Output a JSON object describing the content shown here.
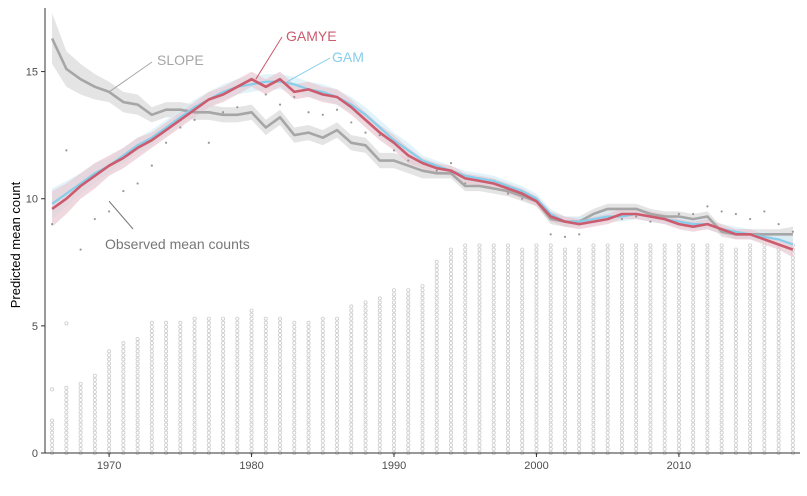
{
  "chart_data": {
    "type": "line",
    "title": "",
    "xlabel": "",
    "ylabel": "Predicted mean count",
    "xlim": [
      1965.5,
      2018.5
    ],
    "ylim": [
      0,
      17.5
    ],
    "x_ticks": [
      1970,
      1980,
      1990,
      2000,
      2010
    ],
    "y_ticks": [
      0,
      5,
      10,
      15
    ],
    "x_tick_labels": [
      "1970",
      "1980",
      "1990",
      "2000",
      "2010"
    ],
    "y_tick_labels": [
      "0",
      "5",
      "10",
      "15"
    ],
    "grid": false,
    "legend": "none (direct labels)",
    "years": [
      1966,
      1967,
      1968,
      1969,
      1970,
      1971,
      1972,
      1973,
      1974,
      1975,
      1976,
      1977,
      1978,
      1979,
      1980,
      1981,
      1982,
      1983,
      1984,
      1985,
      1986,
      1987,
      1988,
      1989,
      1990,
      1991,
      1992,
      1993,
      1994,
      1995,
      1996,
      1997,
      1998,
      1999,
      2000,
      2001,
      2002,
      2003,
      2004,
      2005,
      2006,
      2007,
      2008,
      2009,
      2010,
      2011,
      2012,
      2013,
      2014,
      2015,
      2016,
      2017,
      2018
    ],
    "series": [
      {
        "name": "SLOPE",
        "color": "#a6a6a6",
        "band_color": "#d9d9d9",
        "values": [
          16.3,
          15.1,
          14.7,
          14.4,
          14.2,
          13.8,
          13.7,
          13.3,
          13.5,
          13.5,
          13.4,
          13.4,
          13.3,
          13.3,
          13.4,
          12.8,
          13.2,
          12.5,
          12.6,
          12.4,
          12.7,
          12.2,
          12.1,
          11.5,
          11.5,
          11.3,
          11.1,
          11.0,
          11.0,
          10.5,
          10.5,
          10.4,
          10.3,
          10.1,
          9.9,
          9.2,
          9.1,
          9.1,
          9.4,
          9.6,
          9.6,
          9.6,
          9.4,
          9.3,
          9.3,
          9.2,
          9.3,
          8.7,
          8.6,
          8.6,
          8.6,
          8.6,
          8.6
        ],
        "band_halfwidth": [
          1.0,
          0.7,
          0.6,
          0.5,
          0.4,
          0.4,
          0.4,
          0.3,
          0.3,
          0.3,
          0.3,
          0.3,
          0.3,
          0.3,
          0.3,
          0.3,
          0.3,
          0.3,
          0.3,
          0.3,
          0.3,
          0.3,
          0.3,
          0.3,
          0.3,
          0.3,
          0.3,
          0.2,
          0.2,
          0.2,
          0.2,
          0.2,
          0.2,
          0.2,
          0.2,
          0.2,
          0.2,
          0.2,
          0.2,
          0.2,
          0.2,
          0.2,
          0.2,
          0.2,
          0.2,
          0.2,
          0.2,
          0.2,
          0.2,
          0.2,
          0.2,
          0.2,
          0.3
        ]
      },
      {
        "name": "GAM",
        "color": "#87ceeb",
        "band_color": "#d6eef8",
        "values": [
          9.8,
          10.2,
          10.6,
          11.0,
          11.3,
          11.7,
          12.1,
          12.4,
          12.8,
          13.2,
          13.6,
          13.9,
          14.2,
          14.4,
          14.5,
          14.6,
          14.6,
          14.5,
          14.3,
          14.2,
          14.0,
          13.7,
          13.3,
          12.8,
          12.3,
          11.9,
          11.5,
          11.3,
          11.1,
          10.9,
          10.8,
          10.7,
          10.5,
          10.3,
          10.0,
          9.4,
          9.1,
          9.1,
          9.2,
          9.3,
          9.3,
          9.4,
          9.3,
          9.2,
          9.1,
          9.0,
          9.0,
          8.8,
          8.7,
          8.6,
          8.5,
          8.4,
          8.2
        ],
        "band_halfwidth": [
          0.6,
          0.5,
          0.4,
          0.4,
          0.3,
          0.3,
          0.3,
          0.3,
          0.3,
          0.3,
          0.3,
          0.3,
          0.3,
          0.3,
          0.3,
          0.3,
          0.3,
          0.3,
          0.3,
          0.3,
          0.3,
          0.3,
          0.3,
          0.3,
          0.3,
          0.3,
          0.2,
          0.2,
          0.2,
          0.2,
          0.2,
          0.2,
          0.2,
          0.2,
          0.2,
          0.2,
          0.2,
          0.2,
          0.2,
          0.2,
          0.2,
          0.2,
          0.2,
          0.2,
          0.2,
          0.2,
          0.2,
          0.2,
          0.2,
          0.2,
          0.2,
          0.2,
          0.3
        ]
      },
      {
        "name": "GAMYE",
        "color": "#cc5b6e",
        "band_color": "#e8c9d2",
        "values": [
          9.6,
          10.0,
          10.5,
          10.9,
          11.3,
          11.6,
          12.0,
          12.3,
          12.7,
          13.1,
          13.5,
          13.9,
          14.1,
          14.4,
          14.7,
          14.4,
          14.7,
          14.2,
          14.3,
          14.1,
          14.0,
          13.6,
          13.1,
          12.6,
          12.2,
          11.7,
          11.4,
          11.2,
          11.1,
          10.8,
          10.7,
          10.6,
          10.4,
          10.2,
          9.9,
          9.3,
          9.1,
          9.0,
          9.1,
          9.2,
          9.4,
          9.4,
          9.3,
          9.2,
          9.0,
          8.9,
          9.0,
          8.8,
          8.6,
          8.6,
          8.4,
          8.2,
          8.0
        ],
        "band_halfwidth": [
          0.7,
          0.6,
          0.5,
          0.5,
          0.4,
          0.4,
          0.4,
          0.3,
          0.3,
          0.3,
          0.3,
          0.3,
          0.3,
          0.3,
          0.3,
          0.3,
          0.3,
          0.3,
          0.3,
          0.3,
          0.3,
          0.3,
          0.3,
          0.3,
          0.3,
          0.3,
          0.2,
          0.2,
          0.2,
          0.2,
          0.2,
          0.2,
          0.2,
          0.2,
          0.2,
          0.2,
          0.2,
          0.2,
          0.2,
          0.2,
          0.2,
          0.2,
          0.2,
          0.2,
          0.2,
          0.2,
          0.2,
          0.2,
          0.2,
          0.2,
          0.2,
          0.2,
          0.3
        ]
      }
    ],
    "observed_mean_counts": [
      9.0,
      11.9,
      8.0,
      9.2,
      9.5,
      10.3,
      10.6,
      11.3,
      12.2,
      12.8,
      13.1,
      12.2,
      13.4,
      13.6,
      14.7,
      14.1,
      13.7,
      14.0,
      13.4,
      13.3,
      13.5,
      13.0,
      12.6,
      12.5,
      11.9,
      11.5,
      11.4,
      11.1,
      11.4,
      10.6,
      10.5,
      10.4,
      10.2,
      10.0,
      9.9,
      8.6,
      8.5,
      8.6,
      9.1,
      9.2,
      9.2,
      9.3,
      9.1,
      9.3,
      9.4,
      9.4,
      9.7,
      9.5,
      9.4,
      9.2,
      9.5,
      9.0,
      8.7
    ],
    "observed_color": "#999999",
    "count_columns": {
      "description_color": "#cccccc",
      "column_heights": [
        1.3,
        2.7,
        2.8,
        3.1,
        4.1,
        4.4,
        4.6,
        5.2,
        5.2,
        5.2,
        5.3,
        5.4,
        5.4,
        5.4,
        5.6,
        5.4,
        5.3,
        5.2,
        5.2,
        5.3,
        5.3,
        5.8,
        6.0,
        6.2,
        6.4,
        6.5,
        6.6,
        7.6,
        8.1,
        8.3,
        8.3,
        8.3,
        8.2,
        8.1,
        8.2,
        8.3,
        8.1,
        8.1,
        8.2,
        8.3,
        8.3,
        8.3,
        8.3,
        8.3,
        8.3,
        8.3,
        8.3,
        8.3,
        8.1,
        8.2,
        8.2,
        8.2,
        8.3
      ],
      "outliers": [
        [
          1966,
          2.5
        ],
        [
          1967,
          5.1
        ]
      ]
    },
    "annotations": [
      {
        "text": "SLOPE",
        "color": "#a6a6a6",
        "point": [
          1970.0,
          14.2
        ]
      },
      {
        "text": "GAMYE",
        "color": "#cc5b6e",
        "point": [
          1980.3,
          14.7
        ]
      },
      {
        "text": "GAM",
        "color": "#87ceeb",
        "point": [
          1982.5,
          14.6
        ]
      },
      {
        "text": "Observed mean counts",
        "color": "#777777",
        "point": [
          1970.0,
          9.9
        ]
      }
    ]
  }
}
